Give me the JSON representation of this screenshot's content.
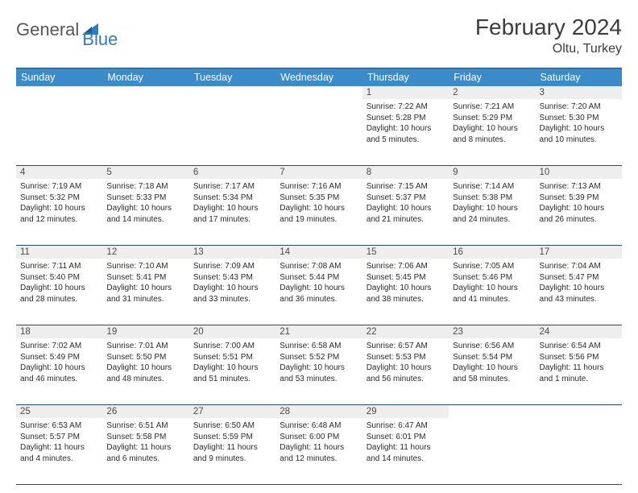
{
  "logo": {
    "text1": "General",
    "text2": "Blue"
  },
  "title": "February 2024",
  "location": "Oltu, Turkey",
  "dayNames": [
    "Sunday",
    "Monday",
    "Tuesday",
    "Wednesday",
    "Thursday",
    "Friday",
    "Saturday"
  ],
  "colors": {
    "header_bg": "#3b8bca",
    "header_border": "#234a70",
    "daynum_bg": "#eeeeee",
    "text": "#2b2b2b",
    "logo_gray": "#565656",
    "logo_blue": "#2f7ac1"
  },
  "weeks": [
    [
      null,
      null,
      null,
      null,
      {
        "n": "1",
        "sr": "Sunrise: 7:22 AM",
        "ss": "Sunset: 5:28 PM",
        "dl": "Daylight: 10 hours and 5 minutes."
      },
      {
        "n": "2",
        "sr": "Sunrise: 7:21 AM",
        "ss": "Sunset: 5:29 PM",
        "dl": "Daylight: 10 hours and 8 minutes."
      },
      {
        "n": "3",
        "sr": "Sunrise: 7:20 AM",
        "ss": "Sunset: 5:30 PM",
        "dl": "Daylight: 10 hours and 10 minutes."
      }
    ],
    [
      {
        "n": "4",
        "sr": "Sunrise: 7:19 AM",
        "ss": "Sunset: 5:32 PM",
        "dl": "Daylight: 10 hours and 12 minutes."
      },
      {
        "n": "5",
        "sr": "Sunrise: 7:18 AM",
        "ss": "Sunset: 5:33 PM",
        "dl": "Daylight: 10 hours and 14 minutes."
      },
      {
        "n": "6",
        "sr": "Sunrise: 7:17 AM",
        "ss": "Sunset: 5:34 PM",
        "dl": "Daylight: 10 hours and 17 minutes."
      },
      {
        "n": "7",
        "sr": "Sunrise: 7:16 AM",
        "ss": "Sunset: 5:35 PM",
        "dl": "Daylight: 10 hours and 19 minutes."
      },
      {
        "n": "8",
        "sr": "Sunrise: 7:15 AM",
        "ss": "Sunset: 5:37 PM",
        "dl": "Daylight: 10 hours and 21 minutes."
      },
      {
        "n": "9",
        "sr": "Sunrise: 7:14 AM",
        "ss": "Sunset: 5:38 PM",
        "dl": "Daylight: 10 hours and 24 minutes."
      },
      {
        "n": "10",
        "sr": "Sunrise: 7:13 AM",
        "ss": "Sunset: 5:39 PM",
        "dl": "Daylight: 10 hours and 26 minutes."
      }
    ],
    [
      {
        "n": "11",
        "sr": "Sunrise: 7:11 AM",
        "ss": "Sunset: 5:40 PM",
        "dl": "Daylight: 10 hours and 28 minutes."
      },
      {
        "n": "12",
        "sr": "Sunrise: 7:10 AM",
        "ss": "Sunset: 5:41 PM",
        "dl": "Daylight: 10 hours and 31 minutes."
      },
      {
        "n": "13",
        "sr": "Sunrise: 7:09 AM",
        "ss": "Sunset: 5:43 PM",
        "dl": "Daylight: 10 hours and 33 minutes."
      },
      {
        "n": "14",
        "sr": "Sunrise: 7:08 AM",
        "ss": "Sunset: 5:44 PM",
        "dl": "Daylight: 10 hours and 36 minutes."
      },
      {
        "n": "15",
        "sr": "Sunrise: 7:06 AM",
        "ss": "Sunset: 5:45 PM",
        "dl": "Daylight: 10 hours and 38 minutes."
      },
      {
        "n": "16",
        "sr": "Sunrise: 7:05 AM",
        "ss": "Sunset: 5:46 PM",
        "dl": "Daylight: 10 hours and 41 minutes."
      },
      {
        "n": "17",
        "sr": "Sunrise: 7:04 AM",
        "ss": "Sunset: 5:47 PM",
        "dl": "Daylight: 10 hours and 43 minutes."
      }
    ],
    [
      {
        "n": "18",
        "sr": "Sunrise: 7:02 AM",
        "ss": "Sunset: 5:49 PM",
        "dl": "Daylight: 10 hours and 46 minutes."
      },
      {
        "n": "19",
        "sr": "Sunrise: 7:01 AM",
        "ss": "Sunset: 5:50 PM",
        "dl": "Daylight: 10 hours and 48 minutes."
      },
      {
        "n": "20",
        "sr": "Sunrise: 7:00 AM",
        "ss": "Sunset: 5:51 PM",
        "dl": "Daylight: 10 hours and 51 minutes."
      },
      {
        "n": "21",
        "sr": "Sunrise: 6:58 AM",
        "ss": "Sunset: 5:52 PM",
        "dl": "Daylight: 10 hours and 53 minutes."
      },
      {
        "n": "22",
        "sr": "Sunrise: 6:57 AM",
        "ss": "Sunset: 5:53 PM",
        "dl": "Daylight: 10 hours and 56 minutes."
      },
      {
        "n": "23",
        "sr": "Sunrise: 6:56 AM",
        "ss": "Sunset: 5:54 PM",
        "dl": "Daylight: 10 hours and 58 minutes."
      },
      {
        "n": "24",
        "sr": "Sunrise: 6:54 AM",
        "ss": "Sunset: 5:56 PM",
        "dl": "Daylight: 11 hours and 1 minute."
      }
    ],
    [
      {
        "n": "25",
        "sr": "Sunrise: 6:53 AM",
        "ss": "Sunset: 5:57 PM",
        "dl": "Daylight: 11 hours and 4 minutes."
      },
      {
        "n": "26",
        "sr": "Sunrise: 6:51 AM",
        "ss": "Sunset: 5:58 PM",
        "dl": "Daylight: 11 hours and 6 minutes."
      },
      {
        "n": "27",
        "sr": "Sunrise: 6:50 AM",
        "ss": "Sunset: 5:59 PM",
        "dl": "Daylight: 11 hours and 9 minutes."
      },
      {
        "n": "28",
        "sr": "Sunrise: 6:48 AM",
        "ss": "Sunset: 6:00 PM",
        "dl": "Daylight: 11 hours and 12 minutes."
      },
      {
        "n": "29",
        "sr": "Sunrise: 6:47 AM",
        "ss": "Sunset: 6:01 PM",
        "dl": "Daylight: 11 hours and 14 minutes."
      },
      null,
      null
    ]
  ]
}
